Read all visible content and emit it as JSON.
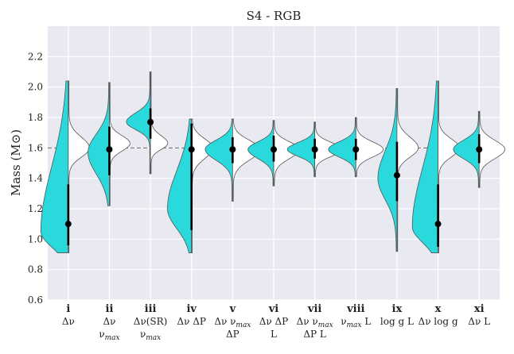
{
  "chart_data": {
    "type": "violin",
    "title": "S4 - RGB",
    "ylabel": "Mass (M⊙)",
    "xlabel": "",
    "ylim": [
      0.6,
      2.4
    ],
    "yticks": [
      0.6,
      0.8,
      1.0,
      1.2,
      1.4,
      1.6,
      1.8,
      2.0,
      2.2
    ],
    "ytick_labels": [
      "0.6",
      "0.8",
      "1.0",
      "1.2",
      "1.4",
      "1.6",
      "1.8",
      "2.0",
      "2.2"
    ],
    "grid": true,
    "reference_line": 1.6,
    "left_color": "#2ad9dc",
    "right_color": "#ffffff",
    "background_color": "#e9e9f2",
    "categories": [
      {
        "id": "i",
        "lines": [
          "Δν"
        ]
      },
      {
        "id": "ii",
        "lines": [
          "Δν",
          "ν_max"
        ]
      },
      {
        "id": "iii",
        "lines": [
          "Δν(SR)",
          "ν_max"
        ]
      },
      {
        "id": "iv",
        "lines": [
          "Δν ΔP"
        ]
      },
      {
        "id": "v",
        "lines": [
          "Δν ν_max",
          "ΔP"
        ]
      },
      {
        "id": "vi",
        "lines": [
          "Δν ΔP",
          "L"
        ]
      },
      {
        "id": "vii",
        "lines": [
          "Δν ν_max",
          "ΔP L"
        ]
      },
      {
        "id": "viii",
        "lines": [
          "ν_max L"
        ]
      },
      {
        "id": "ix",
        "lines": [
          "log g  L"
        ]
      },
      {
        "id": "x",
        "lines": [
          "Δν log g"
        ]
      },
      {
        "id": "xi",
        "lines": [
          "Δν L"
        ]
      }
    ],
    "series": [
      {
        "id": "i",
        "median": 1.1,
        "interval": [
          0.96,
          1.36
        ],
        "left": {
          "ymin": 0.91,
          "ymax": 2.04,
          "peak": 1.05,
          "peak_width": 0.8,
          "sigma_lo": 0.1,
          "sigma_hi": 0.42
        },
        "right": {
          "ymin": 0.91,
          "ymax": 2.04,
          "peak": 1.6,
          "peak_width": 0.62,
          "sigma_lo": 0.06,
          "sigma_hi": 0.07
        }
      },
      {
        "id": "ii",
        "median": 1.59,
        "interval": [
          1.42,
          1.74
        ],
        "left": {
          "ymin": 1.22,
          "ymax": 2.03,
          "peak": 1.57,
          "peak_width": 0.62,
          "sigma_lo": 0.14,
          "sigma_hi": 0.12
        },
        "right": {
          "ymin": 1.22,
          "ymax": 2.03,
          "peak": 1.63,
          "peak_width": 0.6,
          "sigma_lo": 0.05,
          "sigma_hi": 0.05
        }
      },
      {
        "id": "iii",
        "median": 1.77,
        "interval": [
          1.66,
          1.86
        ],
        "left": {
          "ymin": 1.43,
          "ymax": 2.1,
          "peak": 1.77,
          "peak_width": 0.7,
          "sigma_lo": 0.05,
          "sigma_hi": 0.06
        },
        "right": {
          "ymin": 1.43,
          "ymax": 2.1,
          "peak": 1.63,
          "peak_width": 0.5,
          "sigma_lo": 0.04,
          "sigma_hi": 0.05
        }
      },
      {
        "id": "iv",
        "median": 1.59,
        "interval": [
          1.06,
          1.76
        ],
        "left": {
          "ymin": 0.91,
          "ymax": 1.79,
          "peak": 1.2,
          "peak_width": 0.7,
          "sigma_lo": 0.13,
          "sigma_hi": 0.25
        },
        "right": {
          "ymin": 0.91,
          "ymax": 1.79,
          "peak": 1.6,
          "peak_width": 0.62,
          "sigma_lo": 0.07,
          "sigma_hi": 0.06
        }
      },
      {
        "id": "v",
        "median": 1.59,
        "interval": [
          1.5,
          1.67
        ],
        "left": {
          "ymin": 1.25,
          "ymax": 1.79,
          "peak": 1.59,
          "peak_width": 0.8,
          "sigma_lo": 0.07,
          "sigma_hi": 0.06
        },
        "right": {
          "ymin": 1.25,
          "ymax": 1.79,
          "peak": 1.59,
          "peak_width": 0.8,
          "sigma_lo": 0.07,
          "sigma_hi": 0.06
        }
      },
      {
        "id": "vi",
        "median": 1.59,
        "interval": [
          1.51,
          1.68
        ],
        "left": {
          "ymin": 1.35,
          "ymax": 1.78,
          "peak": 1.59,
          "peak_width": 0.75,
          "sigma_lo": 0.06,
          "sigma_hi": 0.05
        },
        "right": {
          "ymin": 1.35,
          "ymax": 1.78,
          "peak": 1.59,
          "peak_width": 0.75,
          "sigma_lo": 0.06,
          "sigma_hi": 0.05
        }
      },
      {
        "id": "vii",
        "median": 1.59,
        "interval": [
          1.53,
          1.66
        ],
        "left": {
          "ymin": 1.41,
          "ymax": 1.77,
          "peak": 1.59,
          "peak_width": 0.8,
          "sigma_lo": 0.045,
          "sigma_hi": 0.045
        },
        "right": {
          "ymin": 1.41,
          "ymax": 1.77,
          "peak": 1.59,
          "peak_width": 0.8,
          "sigma_lo": 0.045,
          "sigma_hi": 0.045
        }
      },
      {
        "id": "viii",
        "median": 1.59,
        "interval": [
          1.52,
          1.66
        ],
        "left": {
          "ymin": 1.41,
          "ymax": 1.8,
          "peak": 1.59,
          "peak_width": 0.8,
          "sigma_lo": 0.05,
          "sigma_hi": 0.05
        },
        "right": {
          "ymin": 1.41,
          "ymax": 1.8,
          "peak": 1.59,
          "peak_width": 0.8,
          "sigma_lo": 0.05,
          "sigma_hi": 0.05
        }
      },
      {
        "id": "ix",
        "median": 1.42,
        "interval": [
          1.25,
          1.64
        ],
        "left": {
          "ymin": 0.92,
          "ymax": 1.99,
          "peak": 1.4,
          "peak_width": 0.55,
          "sigma_lo": 0.14,
          "sigma_hi": 0.18
        },
        "right": {
          "ymin": 0.92,
          "ymax": 1.99,
          "peak": 1.6,
          "peak_width": 0.62,
          "sigma_lo": 0.06,
          "sigma_hi": 0.07
        }
      },
      {
        "id": "x",
        "median": 1.1,
        "interval": [
          0.95,
          1.36
        ],
        "left": {
          "ymin": 0.91,
          "ymax": 2.04,
          "peak": 1.08,
          "peak_width": 0.75,
          "sigma_lo": 0.1,
          "sigma_hi": 0.38
        },
        "right": {
          "ymin": 0.91,
          "ymax": 2.04,
          "peak": 1.6,
          "peak_width": 0.62,
          "sigma_lo": 0.06,
          "sigma_hi": 0.06
        }
      },
      {
        "id": "xi",
        "median": 1.59,
        "interval": [
          1.5,
          1.69
        ],
        "left": {
          "ymin": 1.34,
          "ymax": 1.84,
          "peak": 1.59,
          "peak_width": 0.75,
          "sigma_lo": 0.06,
          "sigma_hi": 0.06
        },
        "right": {
          "ymin": 1.34,
          "ymax": 1.84,
          "peak": 1.59,
          "peak_width": 0.75,
          "sigma_lo": 0.06,
          "sigma_hi": 0.06
        }
      }
    ]
  }
}
